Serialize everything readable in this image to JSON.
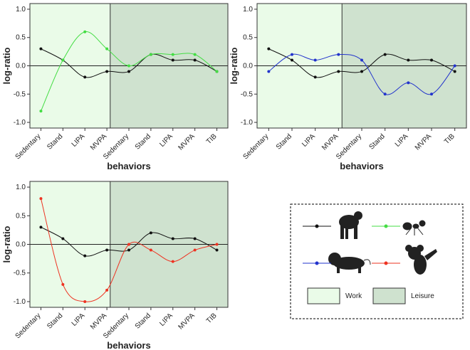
{
  "chart_data": [
    {
      "type": "line",
      "x_label": "behaviors",
      "y_label": "log-ratio",
      "categories": [
        "Sedentary",
        "Stand",
        "LIPA",
        "MVPA",
        "Sedentary",
        "Stand",
        "LIPA",
        "MVPA",
        "TIB"
      ],
      "series": [
        {
          "color": "#111111",
          "values": [
            0.3,
            0.1,
            -0.2,
            -0.1,
            -0.1,
            0.2,
            0.1,
            0.1,
            -0.1
          ]
        },
        {
          "color": "#44dd44",
          "values": [
            -0.8,
            0.1,
            0.6,
            0.3,
            0.0,
            0.2,
            0.2,
            0.2,
            -0.1
          ]
        }
      ],
      "ylim": [
        -1.1,
        1.1
      ],
      "yticks": [
        {
          "value": -1,
          "label": "-1.0"
        },
        {
          "value": -0.5,
          "label": "-0.5"
        },
        {
          "value": 0,
          "label": "0.0"
        },
        {
          "value": 0.5,
          "label": "0.5"
        },
        {
          "value": 1,
          "label": "1.0"
        }
      ]
    },
    {
      "type": "line",
      "x_label": "behaviors",
      "y_label": "log-ratio",
      "categories": [
        "Sedentary",
        "Stand",
        "LIPA",
        "MVPA",
        "Sedentary",
        "Stand",
        "LIPA",
        "MVPA",
        "TIB"
      ],
      "series": [
        {
          "color": "#111111",
          "values": [
            0.3,
            0.1,
            -0.2,
            -0.1,
            -0.1,
            0.2,
            0.1,
            0.1,
            -0.1
          ]
        },
        {
          "color": "#2233cc",
          "values": [
            -0.1,
            0.2,
            0.1,
            0.2,
            0.1,
            -0.5,
            -0.3,
            -0.5,
            0.0
          ]
        }
      ],
      "ylim": [
        -1.1,
        1.1
      ],
      "yticks": [
        {
          "value": -1,
          "label": "-1.0"
        },
        {
          "value": -0.5,
          "label": "-0.5"
        },
        {
          "value": 0,
          "label": "0.0"
        },
        {
          "value": 0.5,
          "label": "0.5"
        },
        {
          "value": 1,
          "label": "1.0"
        }
      ]
    },
    {
      "type": "line",
      "x_label": "behaviors",
      "y_label": "log-ratio",
      "categories": [
        "Sedentary",
        "Stand",
        "LIPA",
        "MVPA",
        "Sedentary",
        "Stand",
        "LIPA",
        "MVPA",
        "TIB"
      ],
      "series": [
        {
          "color": "#111111",
          "values": [
            0.3,
            0.1,
            -0.2,
            -0.1,
            -0.1,
            0.2,
            0.1,
            0.1,
            -0.1
          ]
        },
        {
          "color": "#ee3322",
          "values": [
            0.8,
            -0.7,
            -1.0,
            -0.8,
            0.0,
            -0.1,
            -0.3,
            -0.1,
            0.0
          ]
        }
      ],
      "ylim": [
        -1.1,
        1.1
      ],
      "yticks": [
        {
          "value": -1,
          "label": "-1.0"
        },
        {
          "value": -0.5,
          "label": "-0.5"
        },
        {
          "value": 0,
          "label": "0.0"
        },
        {
          "value": 0.5,
          "label": "0.5"
        },
        {
          "value": 1,
          "label": "1.0"
        }
      ]
    }
  ],
  "legend": {
    "regions": [
      {
        "label": "Work",
        "color": "#eafbe8"
      },
      {
        "label": "Leisure",
        "color": "#cfe2cf"
      }
    ]
  }
}
